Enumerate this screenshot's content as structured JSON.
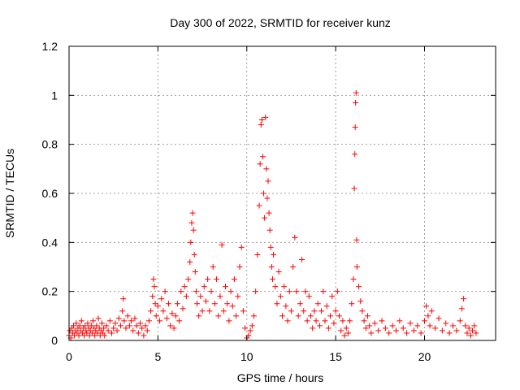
{
  "chart_data": {
    "type": "scatter",
    "title": "Day 300 of 2022, SRMTID for receiver kunz",
    "xlabel": "GPS time / hours",
    "ylabel": "SRMTID / TECUs",
    "xlim": [
      0,
      24
    ],
    "ylim": [
      0,
      1.2
    ],
    "xticks": [
      0,
      5,
      10,
      15,
      20
    ],
    "xtick_labels": [
      "0",
      "5",
      "10",
      "15",
      "20"
    ],
    "yticks": [
      0,
      0.2,
      0.4,
      0.6,
      0.8,
      1.0,
      1.2
    ],
    "ytick_labels": [
      "0",
      "0.2",
      "0.4",
      "0.6",
      "0.8",
      "1",
      "1.2"
    ],
    "grid": true,
    "marker": "+",
    "marker_color": "#ff0000",
    "series": [
      {
        "name": "SRMTID",
        "points": [
          [
            0.0,
            0.02
          ],
          [
            0.05,
            0.04
          ],
          [
            0.1,
            0.01
          ],
          [
            0.15,
            0.05
          ],
          [
            0.2,
            0.03
          ],
          [
            0.25,
            0.06
          ],
          [
            0.3,
            0.02
          ],
          [
            0.35,
            0.04
          ],
          [
            0.4,
            0.07
          ],
          [
            0.45,
            0.03
          ],
          [
            0.5,
            0.05
          ],
          [
            0.55,
            0.02
          ],
          [
            0.6,
            0.06
          ],
          [
            0.65,
            0.04
          ],
          [
            0.7,
            0.08
          ],
          [
            0.75,
            0.03
          ],
          [
            0.8,
            0.05
          ],
          [
            0.85,
            0.02
          ],
          [
            0.9,
            0.06
          ],
          [
            0.95,
            0.04
          ],
          [
            1.0,
            0.03
          ],
          [
            1.05,
            0.07
          ],
          [
            1.1,
            0.05
          ],
          [
            1.15,
            0.02
          ],
          [
            1.2,
            0.04
          ],
          [
            1.25,
            0.06
          ],
          [
            1.3,
            0.03
          ],
          [
            1.35,
            0.08
          ],
          [
            1.4,
            0.05
          ],
          [
            1.45,
            0.02
          ],
          [
            1.5,
            0.04
          ],
          [
            1.55,
            0.06
          ],
          [
            1.6,
            0.03
          ],
          [
            1.65,
            0.09
          ],
          [
            1.7,
            0.05
          ],
          [
            1.75,
            0.02
          ],
          [
            1.8,
            0.04
          ],
          [
            1.85,
            0.07
          ],
          [
            1.9,
            0.03
          ],
          [
            1.95,
            0.05
          ],
          [
            2.0,
            0.02
          ],
          [
            2.1,
            0.06
          ],
          [
            2.2,
            0.04
          ],
          [
            2.3,
            0.08
          ],
          [
            2.4,
            0.03
          ],
          [
            2.5,
            0.05
          ],
          [
            2.6,
            0.07
          ],
          [
            2.7,
            0.04
          ],
          [
            2.8,
            0.09
          ],
          [
            2.9,
            0.06
          ],
          [
            3.0,
            0.12
          ],
          [
            3.05,
            0.17
          ],
          [
            3.1,
            0.08
          ],
          [
            3.2,
            0.05
          ],
          [
            3.3,
            0.1
          ],
          [
            3.4,
            0.06
          ],
          [
            3.5,
            0.08
          ],
          [
            3.6,
            0.04
          ],
          [
            3.7,
            0.09
          ],
          [
            3.8,
            0.06
          ],
          [
            3.9,
            0.03
          ],
          [
            4.0,
            0.07
          ],
          [
            4.1,
            0.05
          ],
          [
            4.2,
            0.02
          ],
          [
            4.3,
            0.06
          ],
          [
            4.4,
            0.04
          ],
          [
            4.5,
            0.08
          ],
          [
            4.6,
            0.12
          ],
          [
            4.7,
            0.18
          ],
          [
            4.75,
            0.25
          ],
          [
            4.8,
            0.22
          ],
          [
            4.85,
            0.15
          ],
          [
            4.9,
            0.1
          ],
          [
            5.0,
            0.14
          ],
          [
            5.1,
            0.08
          ],
          [
            5.2,
            0.17
          ],
          [
            5.3,
            0.12
          ],
          [
            5.4,
            0.2
          ],
          [
            5.5,
            0.09
          ],
          [
            5.6,
            0.15
          ],
          [
            5.7,
            0.06
          ],
          [
            5.8,
            0.11
          ],
          [
            5.9,
            0.05
          ],
          [
            6.0,
            0.1
          ],
          [
            6.1,
            0.15
          ],
          [
            6.2,
            0.08
          ],
          [
            6.3,
            0.2
          ],
          [
            6.4,
            0.13
          ],
          [
            6.5,
            0.22
          ],
          [
            6.6,
            0.18
          ],
          [
            6.7,
            0.25
          ],
          [
            6.8,
            0.32
          ],
          [
            6.85,
            0.4
          ],
          [
            6.9,
            0.48
          ],
          [
            6.95,
            0.52
          ],
          [
            7.0,
            0.45
          ],
          [
            7.05,
            0.35
          ],
          [
            7.1,
            0.28
          ],
          [
            7.15,
            0.2
          ],
          [
            7.2,
            0.15
          ],
          [
            7.3,
            0.1
          ],
          [
            7.4,
            0.18
          ],
          [
            7.5,
            0.12
          ],
          [
            7.6,
            0.22
          ],
          [
            7.7,
            0.16
          ],
          [
            7.8,
            0.25
          ],
          [
            7.9,
            0.12
          ],
          [
            8.0,
            0.2
          ],
          [
            8.1,
            0.3
          ],
          [
            8.2,
            0.15
          ],
          [
            8.3,
            0.25
          ],
          [
            8.4,
            0.1
          ],
          [
            8.5,
            0.18
          ],
          [
            8.6,
            0.39
          ],
          [
            8.7,
            0.12
          ],
          [
            8.8,
            0.22
          ],
          [
            8.9,
            0.15
          ],
          [
            9.0,
            0.08
          ],
          [
            9.1,
            0.2
          ],
          [
            9.2,
            0.14
          ],
          [
            9.3,
            0.25
          ],
          [
            9.4,
            0.1
          ],
          [
            9.5,
            0.18
          ],
          [
            9.6,
            0.3
          ],
          [
            9.7,
            0.38
          ],
          [
            9.8,
            0.12
          ],
          [
            9.9,
            0.05
          ],
          [
            10.0,
            0.01
          ],
          [
            10.1,
            0.02
          ],
          [
            10.2,
            0.04
          ],
          [
            10.3,
            0.06
          ],
          [
            10.4,
            0.1
          ],
          [
            10.5,
            0.2
          ],
          [
            10.6,
            0.35
          ],
          [
            10.7,
            0.55
          ],
          [
            10.75,
            0.72
          ],
          [
            10.8,
            0.88
          ],
          [
            10.85,
            0.9
          ],
          [
            10.9,
            0.75
          ],
          [
            10.95,
            0.6
          ],
          [
            11.0,
            0.5
          ],
          [
            11.05,
            0.91
          ],
          [
            11.1,
            0.7
          ],
          [
            11.15,
            0.58
          ],
          [
            11.2,
            0.65
          ],
          [
            11.25,
            0.52
          ],
          [
            11.3,
            0.45
          ],
          [
            11.35,
            0.38
          ],
          [
            11.4,
            0.3
          ],
          [
            11.45,
            0.25
          ],
          [
            11.5,
            0.35
          ],
          [
            11.6,
            0.22
          ],
          [
            11.7,
            0.15
          ],
          [
            11.8,
            0.28
          ],
          [
            11.9,
            0.18
          ],
          [
            12.0,
            0.1
          ],
          [
            12.1,
            0.22
          ],
          [
            12.2,
            0.14
          ],
          [
            12.3,
            0.08
          ],
          [
            12.4,
            0.2
          ],
          [
            12.5,
            0.12
          ],
          [
            12.6,
            0.3
          ],
          [
            12.7,
            0.42
          ],
          [
            12.8,
            0.2
          ],
          [
            12.9,
            0.1
          ],
          [
            13.0,
            0.15
          ],
          [
            13.1,
            0.33
          ],
          [
            13.2,
            0.12
          ],
          [
            13.3,
            0.2
          ],
          [
            13.4,
            0.08
          ],
          [
            13.5,
            0.18
          ],
          [
            13.6,
            0.1
          ],
          [
            13.7,
            0.05
          ],
          [
            13.8,
            0.12
          ],
          [
            13.9,
            0.08
          ],
          [
            14.0,
            0.15
          ],
          [
            14.1,
            0.06
          ],
          [
            14.2,
            0.12
          ],
          [
            14.3,
            0.2
          ],
          [
            14.4,
            0.08
          ],
          [
            14.5,
            0.14
          ],
          [
            14.6,
            0.05
          ],
          [
            14.7,
            0.1
          ],
          [
            14.8,
            0.18
          ],
          [
            14.9,
            0.07
          ],
          [
            15.0,
            0.12
          ],
          [
            15.1,
            0.2
          ],
          [
            15.2,
            0.1
          ],
          [
            15.3,
            0.04
          ],
          [
            15.4,
            0.08
          ],
          [
            15.5,
            0.02
          ],
          [
            15.6,
            0.05
          ],
          [
            15.7,
            0.03
          ],
          [
            15.8,
            0.08
          ],
          [
            15.9,
            0.15
          ],
          [
            16.0,
            0.25
          ],
          [
            16.05,
            0.62
          ],
          [
            16.08,
            0.76
          ],
          [
            16.1,
            0.87
          ],
          [
            16.12,
            0.97
          ],
          [
            16.15,
            1.01
          ],
          [
            16.18,
            0.41
          ],
          [
            16.2,
            0.3
          ],
          [
            16.3,
            0.22
          ],
          [
            16.4,
            0.16
          ],
          [
            16.5,
            0.12
          ],
          [
            16.6,
            0.08
          ],
          [
            16.7,
            0.05
          ],
          [
            16.8,
            0.1
          ],
          [
            16.9,
            0.06
          ],
          [
            17.0,
            0.03
          ],
          [
            17.2,
            0.07
          ],
          [
            17.4,
            0.04
          ],
          [
            17.6,
            0.08
          ],
          [
            17.8,
            0.05
          ],
          [
            18.0,
            0.03
          ],
          [
            18.2,
            0.06
          ],
          [
            18.4,
            0.04
          ],
          [
            18.6,
            0.08
          ],
          [
            18.8,
            0.05
          ],
          [
            19.0,
            0.03
          ],
          [
            19.2,
            0.07
          ],
          [
            19.4,
            0.04
          ],
          [
            19.6,
            0.06
          ],
          [
            19.8,
            0.03
          ],
          [
            20.0,
            0.08
          ],
          [
            20.1,
            0.14
          ],
          [
            20.2,
            0.1
          ],
          [
            20.3,
            0.06
          ],
          [
            20.4,
            0.12
          ],
          [
            20.6,
            0.05
          ],
          [
            20.8,
            0.09
          ],
          [
            21.0,
            0.04
          ],
          [
            21.2,
            0.07
          ],
          [
            21.4,
            0.03
          ],
          [
            21.6,
            0.06
          ],
          [
            21.8,
            0.04
          ],
          [
            22.0,
            0.08
          ],
          [
            22.1,
            0.13
          ],
          [
            22.2,
            0.17
          ],
          [
            22.3,
            0.06
          ],
          [
            22.4,
            0.03
          ],
          [
            22.5,
            0.05
          ],
          [
            22.6,
            0.02
          ],
          [
            22.7,
            0.04
          ],
          [
            22.8,
            0.06
          ],
          [
            22.9,
            0.03
          ]
        ]
      }
    ]
  }
}
